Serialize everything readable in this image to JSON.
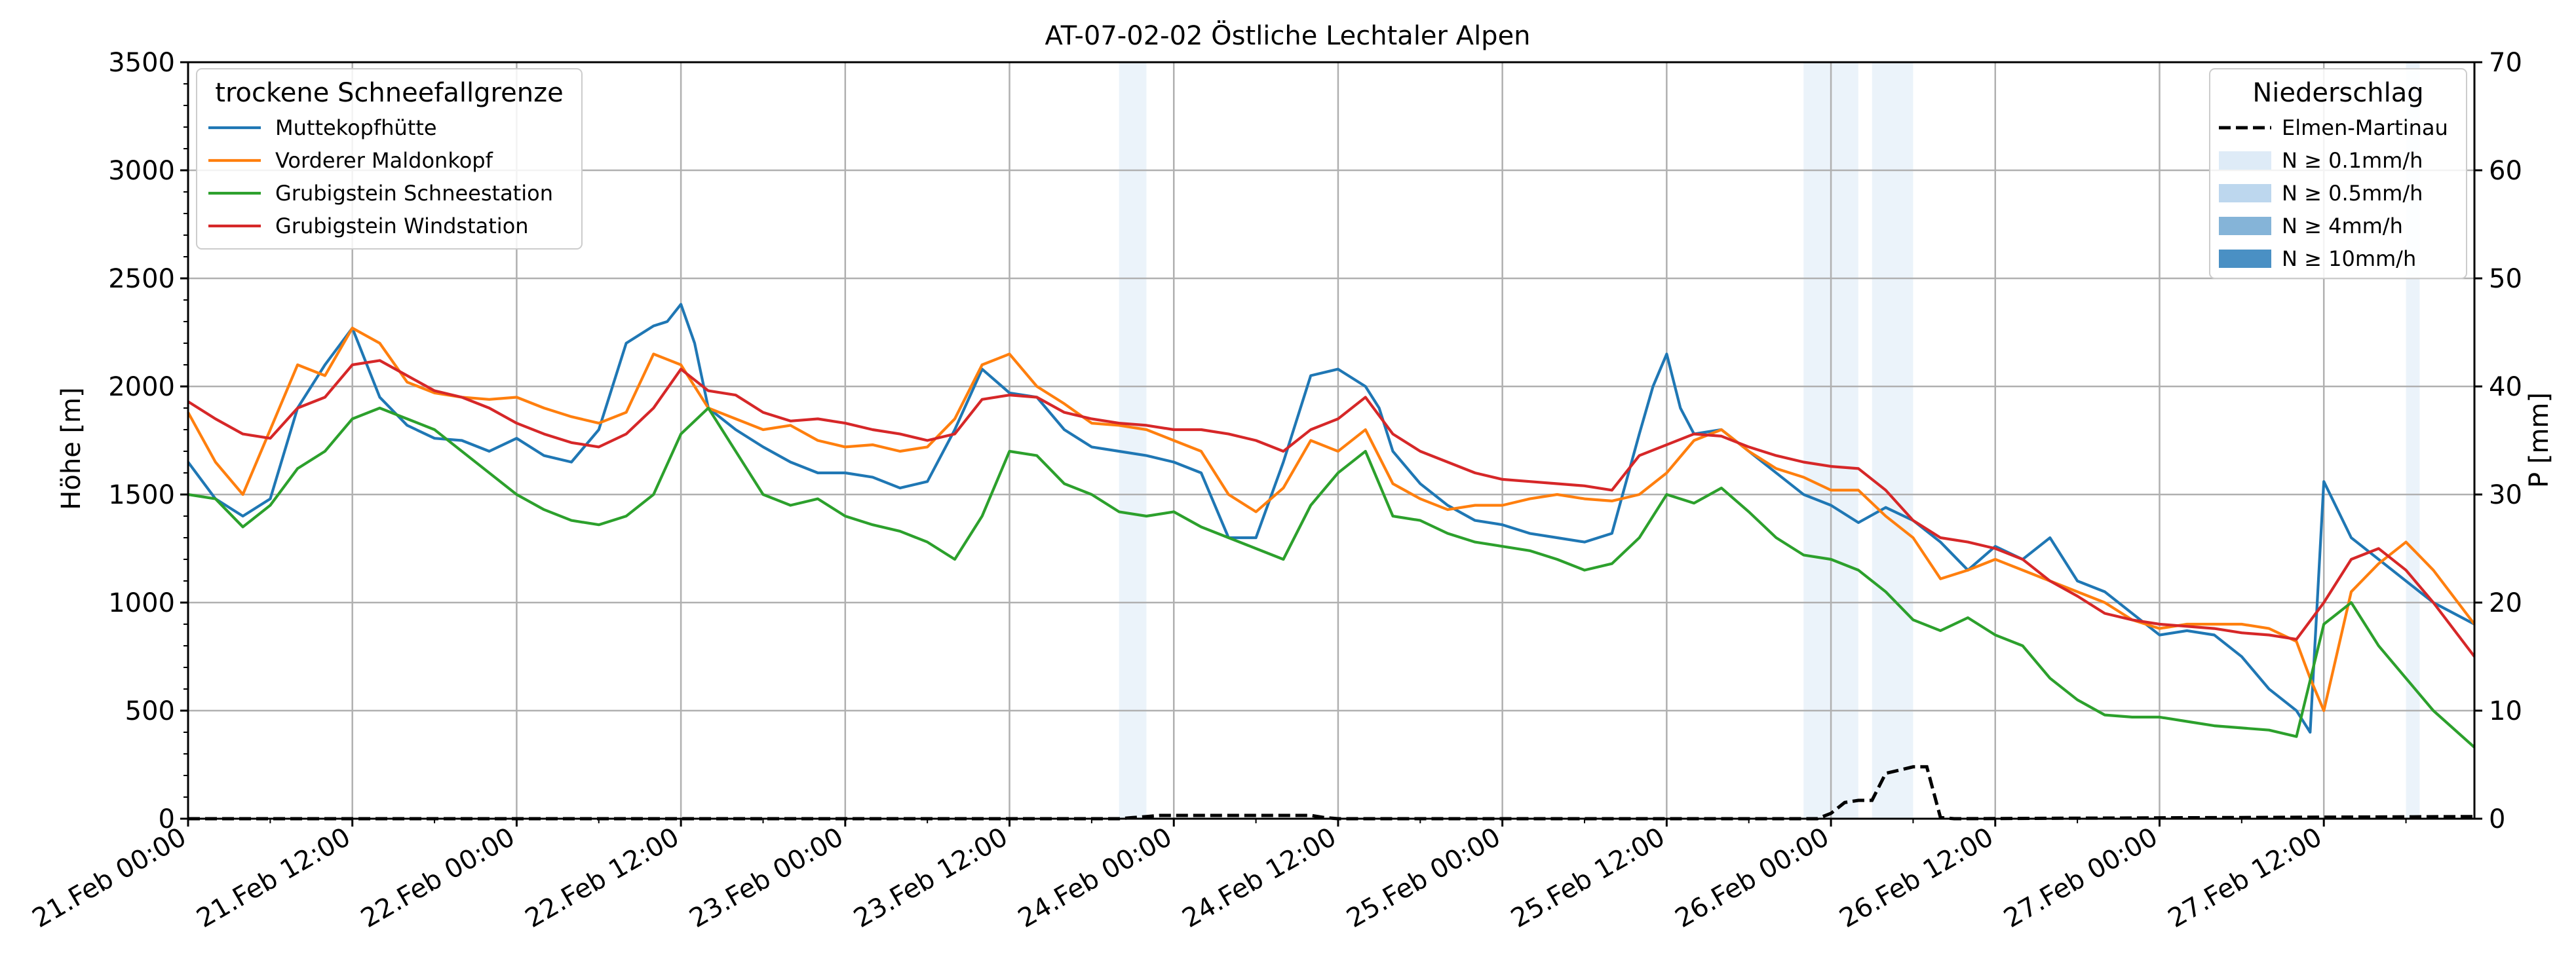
{
  "chart_data": {
    "type": "line",
    "title": "AT-07-02-02 Östliche Lechtaler Alpen",
    "ylabel": "Höhe [m]",
    "y2label": "P [mm]",
    "xlabel": "",
    "grid": true,
    "ylim": [
      0,
      3500
    ],
    "y2lim": [
      0,
      70
    ],
    "yticks": [
      "0",
      "500",
      "1000",
      "1500",
      "2000",
      "2500",
      "3000",
      "3500"
    ],
    "y2ticks": [
      "0",
      "10",
      "20",
      "30",
      "40",
      "50",
      "60",
      "70"
    ],
    "xrange_hours": [
      0,
      167
    ],
    "xticks": [
      {
        "hour": 0,
        "label": "21.Feb 00:00"
      },
      {
        "hour": 12,
        "label": "21.Feb 12:00"
      },
      {
        "hour": 24,
        "label": "22.Feb 00:00"
      },
      {
        "hour": 36,
        "label": "22.Feb 12:00"
      },
      {
        "hour": 48,
        "label": "23.Feb 00:00"
      },
      {
        "hour": 60,
        "label": "23.Feb 12:00"
      },
      {
        "hour": 72,
        "label": "24.Feb 00:00"
      },
      {
        "hour": 84,
        "label": "24.Feb 12:00"
      },
      {
        "hour": 96,
        "label": "25.Feb 00:00"
      },
      {
        "hour": 108,
        "label": "25.Feb 12:00"
      },
      {
        "hour": 120,
        "label": "26.Feb 00:00"
      },
      {
        "hour": 132,
        "label": "26.Feb 12:00"
      },
      {
        "hour": 144,
        "label": "27.Feb 00:00"
      },
      {
        "hour": 156,
        "label": "27.Feb 12:00"
      }
    ],
    "legend_left": {
      "title": "trockene Schneefallgrenze",
      "placement": "upper-left"
    },
    "legend_right": {
      "title": "Niederschlag",
      "placement": "upper-right",
      "items": [
        {
          "label": "Elmen-Martinau",
          "kind": "dashed-line",
          "color": "#000000"
        },
        {
          "label": "N ≥ 0.1mm/h",
          "kind": "patch",
          "color": "#deebf7"
        },
        {
          "label": "N ≥ 0.5mm/h",
          "kind": "patch",
          "color": "#bdd7ee"
        },
        {
          "label": "N ≥ 4mm/h",
          "kind": "patch",
          "color": "#85b4d8"
        },
        {
          "label": "N ≥ 10mm/h",
          "kind": "patch",
          "color": "#4a90c4"
        }
      ]
    },
    "precip_bands": [
      {
        "start_hour": 68,
        "end_hour": 70,
        "level": "N ≥ 0.1mm/h"
      },
      {
        "start_hour": 118,
        "end_hour": 122,
        "level": "N ≥ 0.1mm/h"
      },
      {
        "start_hour": 123,
        "end_hour": 126,
        "level": "N ≥ 0.1mm/h"
      },
      {
        "start_hour": 162,
        "end_hour": 163,
        "level": "N ≥ 0.1mm/h"
      }
    ],
    "precip_series": {
      "name": "Elmen-Martinau",
      "x_hours": [
        0,
        68,
        69,
        70,
        71,
        72,
        73,
        74,
        75,
        76,
        77,
        78,
        79,
        80,
        81,
        82,
        83,
        84,
        119,
        120,
        121,
        122,
        123,
        124,
        125,
        126,
        127,
        128,
        129,
        167
      ],
      "values": [
        0,
        0,
        0.1,
        0.2,
        0.3,
        0.3,
        0.3,
        0.3,
        0.3,
        0.3,
        0.3,
        0.3,
        0.3,
        0.3,
        0.3,
        0.3,
        0.1,
        0,
        0,
        0.5,
        1.5,
        1.7,
        1.7,
        4.2,
        4.5,
        4.8,
        4.8,
        0.1,
        0,
        0.2
      ]
    },
    "series": [
      {
        "name": "Muttekopfhütte",
        "color": "#1f77b4",
        "x_hours": [
          0,
          2,
          4,
          6,
          8,
          10,
          12,
          14,
          16,
          18,
          20,
          22,
          24,
          26,
          28,
          30,
          32,
          34,
          35,
          36,
          37,
          38,
          39,
          40,
          42,
          44,
          46,
          48,
          50,
          52,
          54,
          56,
          58,
          60,
          62,
          64,
          66,
          68,
          70,
          72,
          74,
          76,
          78,
          80,
          82,
          84,
          86,
          87,
          88,
          90,
          92,
          94,
          96,
          98,
          100,
          102,
          104,
          106,
          107,
          108,
          109,
          110,
          112,
          114,
          116,
          118,
          120,
          122,
          124,
          126,
          128,
          130,
          132,
          134,
          136,
          138,
          140,
          142,
          144,
          146,
          148,
          150,
          152,
          154,
          155,
          156,
          158,
          160,
          162,
          164,
          167
        ],
        "values": [
          1650,
          1480,
          1400,
          1480,
          1900,
          2100,
          2270,
          1950,
          1820,
          1760,
          1750,
          1700,
          1760,
          1680,
          1650,
          1800,
          2200,
          2280,
          2300,
          2380,
          2200,
          1900,
          1850,
          1800,
          1720,
          1650,
          1600,
          1600,
          1580,
          1530,
          1560,
          1800,
          2080,
          1970,
          1950,
          1800,
          1720,
          1700,
          1680,
          1650,
          1600,
          1300,
          1300,
          1650,
          2050,
          2080,
          2000,
          1900,
          1700,
          1550,
          1450,
          1380,
          1360,
          1320,
          1300,
          1280,
          1320,
          1780,
          2000,
          2150,
          1900,
          1780,
          1800,
          1700,
          1600,
          1500,
          1450,
          1370,
          1440,
          1380,
          1280,
          1150,
          1260,
          1200,
          1300,
          1100,
          1050,
          950,
          850,
          870,
          850,
          750,
          600,
          500,
          400,
          1560,
          1300,
          1200,
          1100,
          1000,
          900
        ]
      },
      {
        "name": "Vorderer Maldonkopf",
        "color": "#ff7f0e",
        "x_hours": [
          0,
          2,
          4,
          6,
          8,
          10,
          12,
          14,
          16,
          18,
          20,
          22,
          24,
          26,
          28,
          30,
          32,
          34,
          36,
          38,
          40,
          42,
          44,
          46,
          48,
          50,
          52,
          54,
          56,
          58,
          60,
          62,
          64,
          66,
          68,
          70,
          72,
          74,
          76,
          78,
          80,
          82,
          84,
          86,
          88,
          90,
          92,
          94,
          96,
          98,
          100,
          102,
          104,
          106,
          108,
          110,
          112,
          114,
          116,
          118,
          120,
          122,
          124,
          126,
          128,
          130,
          132,
          134,
          136,
          138,
          140,
          142,
          144,
          146,
          148,
          150,
          152,
          154,
          155,
          156,
          158,
          160,
          162,
          164,
          167
        ],
        "values": [
          1880,
          1650,
          1500,
          1800,
          2100,
          2050,
          2270,
          2200,
          2020,
          1970,
          1950,
          1940,
          1950,
          1900,
          1860,
          1830,
          1880,
          2150,
          2100,
          1900,
          1850,
          1800,
          1820,
          1750,
          1720,
          1730,
          1700,
          1720,
          1850,
          2100,
          2150,
          2000,
          1920,
          1830,
          1820,
          1800,
          1750,
          1700,
          1500,
          1420,
          1530,
          1750,
          1700,
          1800,
          1550,
          1480,
          1430,
          1450,
          1450,
          1480,
          1500,
          1480,
          1470,
          1500,
          1600,
          1750,
          1800,
          1700,
          1620,
          1580,
          1520,
          1520,
          1400,
          1300,
          1110,
          1150,
          1200,
          1150,
          1100,
          1050,
          1000,
          920,
          880,
          900,
          900,
          900,
          880,
          820,
          650,
          500,
          1050,
          1180,
          1280,
          1150,
          900
        ]
      },
      {
        "name": "Grubigstein Schneestation",
        "color": "#2ca02c",
        "x_hours": [
          0,
          2,
          4,
          6,
          8,
          10,
          12,
          14,
          16,
          18,
          20,
          22,
          24,
          26,
          28,
          30,
          32,
          34,
          36,
          38,
          40,
          42,
          44,
          46,
          48,
          50,
          52,
          54,
          56,
          58,
          60,
          62,
          64,
          66,
          68,
          70,
          72,
          74,
          76,
          78,
          80,
          82,
          84,
          86,
          88,
          90,
          92,
          94,
          96,
          98,
          100,
          102,
          104,
          106,
          108,
          110,
          112,
          114,
          116,
          118,
          120,
          122,
          124,
          126,
          128,
          130,
          132,
          134,
          136,
          138,
          140,
          142,
          144,
          146,
          148,
          150,
          152,
          154,
          156,
          158,
          160,
          162,
          164,
          167
        ],
        "values": [
          1500,
          1480,
          1350,
          1450,
          1620,
          1700,
          1850,
          1900,
          1850,
          1800,
          1700,
          1600,
          1500,
          1430,
          1380,
          1360,
          1400,
          1500,
          1780,
          1900,
          1700,
          1500,
          1450,
          1480,
          1400,
          1360,
          1330,
          1280,
          1200,
          1400,
          1700,
          1680,
          1550,
          1500,
          1420,
          1400,
          1420,
          1350,
          1300,
          1250,
          1200,
          1450,
          1600,
          1700,
          1400,
          1380,
          1320,
          1280,
          1260,
          1240,
          1200,
          1150,
          1180,
          1300,
          1500,
          1460,
          1530,
          1420,
          1300,
          1220,
          1200,
          1150,
          1050,
          920,
          870,
          930,
          850,
          800,
          650,
          550,
          480,
          470,
          470,
          450,
          430,
          420,
          410,
          380,
          900,
          1000,
          800,
          650,
          500,
          330
        ]
      },
      {
        "name": "Grubigstein Windstation",
        "color": "#d62728",
        "x_hours": [
          0,
          2,
          4,
          6,
          8,
          10,
          12,
          14,
          16,
          18,
          20,
          22,
          24,
          26,
          28,
          30,
          32,
          34,
          36,
          38,
          40,
          42,
          44,
          46,
          48,
          50,
          52,
          54,
          56,
          58,
          60,
          62,
          64,
          66,
          68,
          70,
          72,
          74,
          76,
          78,
          80,
          82,
          84,
          86,
          88,
          90,
          92,
          94,
          96,
          98,
          100,
          102,
          104,
          106,
          108,
          110,
          112,
          114,
          116,
          118,
          120,
          122,
          124,
          126,
          128,
          130,
          132,
          134,
          136,
          138,
          140,
          142,
          144,
          146,
          148,
          150,
          152,
          154,
          156,
          158,
          160,
          162,
          164,
          167
        ],
        "values": [
          1930,
          1850,
          1780,
          1760,
          1900,
          1950,
          2100,
          2120,
          2050,
          1980,
          1950,
          1900,
          1830,
          1780,
          1740,
          1720,
          1780,
          1900,
          2080,
          1980,
          1960,
          1880,
          1840,
          1850,
          1830,
          1800,
          1780,
          1750,
          1780,
          1940,
          1960,
          1950,
          1880,
          1850,
          1830,
          1820,
          1800,
          1800,
          1780,
          1750,
          1700,
          1800,
          1850,
          1950,
          1780,
          1700,
          1650,
          1600,
          1570,
          1560,
          1550,
          1540,
          1520,
          1680,
          1730,
          1780,
          1770,
          1720,
          1680,
          1650,
          1630,
          1620,
          1520,
          1380,
          1300,
          1280,
          1250,
          1200,
          1100,
          1030,
          950,
          920,
          900,
          890,
          880,
          860,
          850,
          830,
          1000,
          1200,
          1250,
          1150,
          1000,
          750
        ]
      }
    ]
  }
}
